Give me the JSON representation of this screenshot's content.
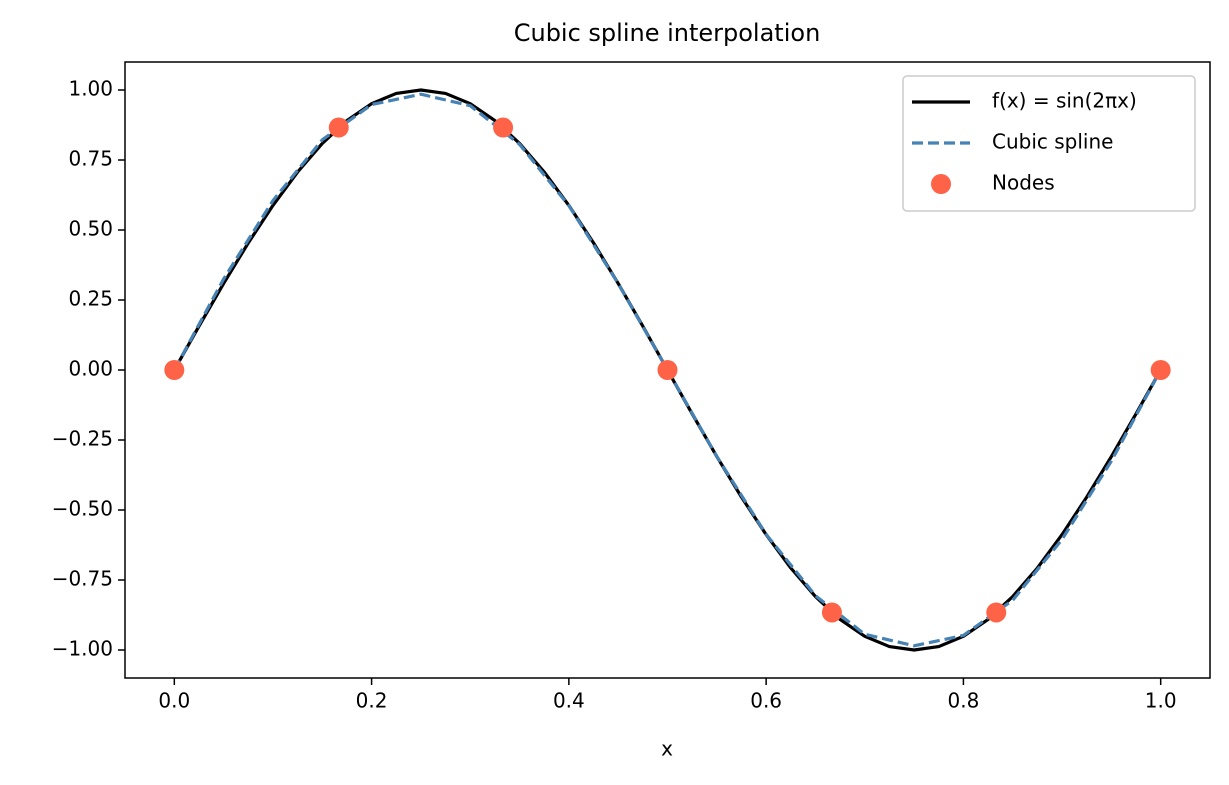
{
  "chart_data": {
    "type": "line",
    "title": "Cubic spline interpolation",
    "x_label": "x",
    "xlim": [
      -0.05,
      1.05
    ],
    "xticks": [
      {
        "value": 0,
        "label": "0.0"
      },
      0.2,
      0.4,
      0.6,
      0.8,
      {
        "value": 1,
        "label": "1.0"
      }
    ],
    "ylim": [
      -1.1,
      1.1
    ],
    "yticks": [
      {
        "value": -1,
        "label": "−1.00"
      },
      {
        "value": -0.75,
        "label": "−0.75"
      },
      {
        "value": -0.5,
        "label": "−0.50"
      },
      {
        "value": -0.25,
        "label": "−0.25"
      },
      {
        "value": 0,
        "label": "0.00"
      },
      {
        "value": 0.25,
        "label": "0.25"
      },
      {
        "value": 0.5,
        "label": "0.50"
      },
      {
        "value": 0.75,
        "label": "0.75"
      },
      {
        "value": 1,
        "label": "1.00"
      }
    ],
    "grid": false,
    "legend": "upper right",
    "series": [
      {
        "name": "f(x) = sin(2πx)",
        "color": "#000000",
        "linestyle": "solid",
        "x": [
          0,
          0.025,
          0.05,
          0.075,
          0.1,
          0.125,
          0.15,
          0.175,
          0.2,
          0.225,
          0.25,
          0.275,
          0.3,
          0.325,
          0.35,
          0.375,
          0.4,
          0.425,
          0.45,
          0.475,
          0.5,
          0.525,
          0.55,
          0.575,
          0.6,
          0.625,
          0.65,
          0.675,
          0.7,
          0.725,
          0.75,
          0.775,
          0.8,
          0.825,
          0.85,
          0.875,
          0.9,
          0.925,
          0.95,
          0.975,
          1
        ],
        "values": [
          0,
          0.1564,
          0.309,
          0.454,
          0.5878,
          0.7071,
          0.809,
          0.891,
          0.9511,
          0.9877,
          1,
          0.9877,
          0.9511,
          0.891,
          0.809,
          0.7071,
          0.5878,
          0.454,
          0.309,
          0.1564,
          0,
          -0.1564,
          -0.309,
          -0.454,
          -0.5878,
          -0.7071,
          -0.809,
          -0.891,
          -0.9511,
          -0.9877,
          -1,
          -0.9877,
          -0.9511,
          -0.891,
          -0.809,
          -0.7071,
          -0.5878,
          -0.454,
          -0.309,
          -0.1564,
          0
        ]
      },
      {
        "name": "Cubic spline",
        "color": "#4682b4",
        "linestyle": "dashed",
        "x": [
          0,
          0.05,
          0.1,
          0.15,
          0.2,
          0.25,
          0.3,
          0.35,
          0.4,
          0.45,
          0.5,
          0.55,
          0.6,
          0.65,
          0.7,
          0.75,
          0.8,
          0.85,
          0.9,
          0.95,
          1
        ],
        "values": [
          0,
          0.325,
          0.605,
          0.822,
          0.948,
          0.985,
          0.944,
          0.806,
          0.587,
          0.309,
          0,
          -0.309,
          -0.587,
          -0.806,
          -0.944,
          -0.985,
          -0.948,
          -0.822,
          -0.605,
          -0.325,
          0
        ]
      },
      {
        "name": "Nodes",
        "color": "#ff6347",
        "linestyle": "none",
        "marker": "o",
        "x": [
          0,
          0.1667,
          0.3333,
          0.5,
          0.6667,
          0.8333,
          1
        ],
        "values": [
          0,
          0.866,
          0.866,
          0,
          -0.866,
          -0.866,
          0
        ]
      }
    ]
  }
}
